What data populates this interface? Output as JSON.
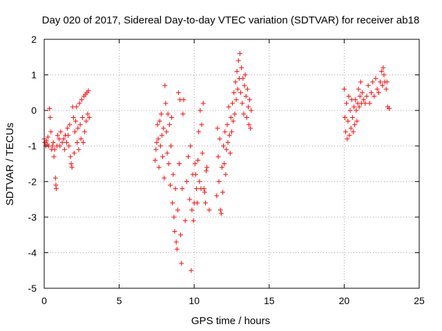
{
  "chart_data": {
    "type": "scatter",
    "title": "Day 020 of 2017, Sidereal Day-to-day VTEC variation (SDTVAR) for receiver ab18",
    "xlabel": "GPS time / hours",
    "ylabel": "SDTVAR / TECUs",
    "xlim": [
      0,
      25
    ],
    "ylim": [
      -5,
      2
    ],
    "xticks": [
      0,
      5,
      10,
      15,
      20,
      25
    ],
    "yticks": [
      -5,
      -4,
      -3,
      -2,
      -1,
      0,
      1,
      2
    ],
    "grid": true,
    "marker": "+",
    "color": "#ff0000",
    "series": [
      {
        "name": "SDTVAR",
        "points": [
          [
            0.0,
            -0.8
          ],
          [
            0.05,
            -0.9
          ],
          [
            0.1,
            -1.0
          ],
          [
            0.15,
            -0.85
          ],
          [
            0.2,
            -0.95
          ],
          [
            0.25,
            -0.75
          ],
          [
            0.3,
            -1.0
          ],
          [
            0.35,
            0.05
          ],
          [
            0.4,
            -0.2
          ],
          [
            0.45,
            -0.6
          ],
          [
            0.5,
            -1.1
          ],
          [
            0.55,
            -1.0
          ],
          [
            0.6,
            -0.9
          ],
          [
            0.65,
            -1.3
          ],
          [
            0.7,
            -1.1
          ],
          [
            0.75,
            -1.9
          ],
          [
            0.78,
            -2.1
          ],
          [
            0.8,
            -2.2
          ],
          [
            0.85,
            -1.0
          ],
          [
            0.9,
            -0.7
          ],
          [
            1.0,
            -0.8
          ],
          [
            1.05,
            -1.0
          ],
          [
            1.1,
            -0.6
          ],
          [
            1.2,
            -0.9
          ],
          [
            1.3,
            -0.8
          ],
          [
            1.35,
            -1.1
          ],
          [
            1.4,
            -0.7
          ],
          [
            1.5,
            -0.9
          ],
          [
            1.55,
            -0.5
          ],
          [
            1.6,
            -0.7
          ],
          [
            1.65,
            -1.0
          ],
          [
            1.7,
            -0.4
          ],
          [
            1.75,
            -1.3
          ],
          [
            1.8,
            -1.5
          ],
          [
            1.85,
            -1.6
          ],
          [
            1.9,
            0.1
          ],
          [
            1.95,
            -0.2
          ],
          [
            2.0,
            -1.2
          ],
          [
            2.05,
            -0.6
          ],
          [
            2.1,
            -0.3
          ],
          [
            2.15,
            0.1
          ],
          [
            2.2,
            -0.9
          ],
          [
            2.25,
            -0.5
          ],
          [
            2.3,
            -1.1
          ],
          [
            2.35,
            0.2
          ],
          [
            2.4,
            -0.4
          ],
          [
            2.45,
            -0.8
          ],
          [
            2.5,
            0.3
          ],
          [
            2.55,
            -0.2
          ],
          [
            2.6,
            -0.9
          ],
          [
            2.65,
            0.4
          ],
          [
            2.7,
            -0.6
          ],
          [
            2.75,
            0.45
          ],
          [
            2.8,
            -0.3
          ],
          [
            2.85,
            0.5
          ],
          [
            2.9,
            -0.1
          ],
          [
            2.95,
            0.55
          ],
          [
            3.0,
            -0.2
          ],
          [
            7.4,
            -1.4
          ],
          [
            7.45,
            -1.1
          ],
          [
            7.5,
            -0.9
          ],
          [
            7.55,
            -0.4
          ],
          [
            7.6,
            -0.8
          ],
          [
            7.65,
            -1.6
          ],
          [
            7.7,
            -0.3
          ],
          [
            7.75,
            -1.0
          ],
          [
            7.8,
            -0.1
          ],
          [
            7.85,
            -0.7
          ],
          [
            7.9,
            -1.3
          ],
          [
            7.95,
            -0.5
          ],
          [
            8.0,
            -1.9
          ],
          [
            8.05,
            0.7
          ],
          [
            8.1,
            0.2
          ],
          [
            8.15,
            -0.6
          ],
          [
            8.2,
            -1.2
          ],
          [
            8.25,
            -0.1
          ],
          [
            8.3,
            -1.5
          ],
          [
            8.35,
            -0.4
          ],
          [
            8.4,
            -2.1
          ],
          [
            8.45,
            -1.0
          ],
          [
            8.5,
            -0.2
          ],
          [
            8.55,
            -2.6
          ],
          [
            8.6,
            -1.8
          ],
          [
            8.65,
            -3.0
          ],
          [
            8.7,
            -3.4
          ],
          [
            8.75,
            -2.2
          ],
          [
            8.8,
            -3.7
          ],
          [
            8.85,
            -3.9
          ],
          [
            8.9,
            -2.8
          ],
          [
            8.95,
            0.5
          ],
          [
            9.0,
            -1.5
          ],
          [
            9.05,
            0.3
          ],
          [
            9.1,
            -3.5
          ],
          [
            9.15,
            -4.3
          ],
          [
            9.2,
            -2.2
          ],
          [
            9.25,
            -0.1
          ],
          [
            9.3,
            0.3
          ],
          [
            9.4,
            -3.1
          ],
          [
            9.5,
            -2.0
          ],
          [
            9.6,
            -1.3
          ],
          [
            9.7,
            -2.5
          ],
          [
            9.75,
            -1.0
          ],
          [
            9.8,
            -4.5
          ],
          [
            9.85,
            -2.8
          ],
          [
            9.9,
            -1.8
          ],
          [
            9.95,
            -3.1
          ],
          [
            10.0,
            -2.6
          ],
          [
            10.05,
            -1.5
          ],
          [
            10.1,
            -1.8
          ],
          [
            10.15,
            -2.2
          ],
          [
            10.2,
            -2.6
          ],
          [
            10.25,
            -1.4
          ],
          [
            10.3,
            -0.6
          ],
          [
            10.35,
            -2.0
          ],
          [
            10.4,
            0.0
          ],
          [
            10.45,
            -2.2
          ],
          [
            10.5,
            -0.4
          ],
          [
            10.55,
            -1.2
          ],
          [
            10.6,
            0.2
          ],
          [
            10.65,
            -2.2
          ],
          [
            10.7,
            -2.3
          ],
          [
            10.75,
            -2.6
          ],
          [
            10.8,
            -1.7
          ],
          [
            10.85,
            -1.6
          ],
          [
            11.0,
            -2.8
          ],
          [
            11.5,
            -2.4
          ],
          [
            11.55,
            -0.5
          ],
          [
            11.6,
            -1.3
          ],
          [
            11.65,
            -2.0
          ],
          [
            11.7,
            -0.8
          ],
          [
            11.75,
            -2.8
          ],
          [
            11.8,
            -2.9
          ],
          [
            11.85,
            -1.6
          ],
          [
            11.9,
            -2.3
          ],
          [
            11.95,
            -1.0
          ],
          [
            12.0,
            -1.5
          ],
          [
            12.05,
            -0.6
          ],
          [
            12.1,
            -1.8
          ],
          [
            12.15,
            -1.1
          ],
          [
            12.2,
            -0.4
          ],
          [
            12.25,
            -0.9
          ],
          [
            12.3,
            0.1
          ],
          [
            12.35,
            -0.7
          ],
          [
            12.4,
            -1.2
          ],
          [
            12.45,
            -0.2
          ],
          [
            12.5,
            -0.6
          ],
          [
            12.55,
            0.2
          ],
          [
            12.6,
            -0.3
          ],
          [
            12.65,
            0.5
          ],
          [
            12.7,
            -0.1
          ],
          [
            12.75,
            0.8
          ],
          [
            12.8,
            0.3
          ],
          [
            12.85,
            1.1
          ],
          [
            12.9,
            0.6
          ],
          [
            12.95,
            1.4
          ],
          [
            13.0,
            0.9
          ],
          [
            13.05,
            1.6
          ],
          [
            13.1,
            0.5
          ],
          [
            13.15,
            1.2
          ],
          [
            13.2,
            0.2
          ],
          [
            13.25,
            0.9
          ],
          [
            13.3,
            -0.1
          ],
          [
            13.35,
            0.7
          ],
          [
            13.4,
            1.0
          ],
          [
            13.45,
            0.4
          ],
          [
            13.5,
            -0.2
          ],
          [
            13.55,
            0.6
          ],
          [
            13.6,
            0.1
          ],
          [
            13.65,
            -0.4
          ],
          [
            13.7,
            0.3
          ],
          [
            13.75,
            -0.5
          ],
          [
            13.8,
            0.0
          ],
          [
            20.0,
            0.6
          ],
          [
            20.05,
            -0.2
          ],
          [
            20.1,
            -0.6
          ],
          [
            20.15,
            0.2
          ],
          [
            20.2,
            -0.8
          ],
          [
            20.25,
            -0.3
          ],
          [
            20.3,
            0.4
          ],
          [
            20.35,
            -0.7
          ],
          [
            20.4,
            0.0
          ],
          [
            20.45,
            -0.5
          ],
          [
            20.5,
            0.3
          ],
          [
            20.55,
            -0.2
          ],
          [
            20.6,
            -0.6
          ],
          [
            20.65,
            0.1
          ],
          [
            20.7,
            -0.4
          ],
          [
            20.75,
            0.3
          ],
          [
            20.8,
            0.0
          ],
          [
            20.85,
            -0.3
          ],
          [
            20.9,
            0.2
          ],
          [
            20.95,
            0.6
          ],
          [
            21.0,
            0.1
          ],
          [
            21.05,
            0.4
          ],
          [
            21.1,
            0.8
          ],
          [
            21.15,
            0.2
          ],
          [
            21.2,
            0.5
          ],
          [
            21.3,
            0.3
          ],
          [
            21.4,
            0.2
          ],
          [
            21.5,
            0.4
          ],
          [
            21.6,
            0.7
          ],
          [
            21.7,
            0.2
          ],
          [
            21.8,
            0.5
          ],
          [
            21.9,
            0.8
          ],
          [
            22.0,
            0.4
          ],
          [
            22.1,
            0.9
          ],
          [
            22.2,
            0.6
          ],
          [
            22.3,
            0.5
          ],
          [
            22.4,
            0.8
          ],
          [
            22.5,
            1.1
          ],
          [
            22.55,
            0.7
          ],
          [
            22.6,
            1.2
          ],
          [
            22.65,
            1.0
          ],
          [
            22.7,
            0.8
          ],
          [
            22.8,
            0.6
          ],
          [
            22.85,
            0.8
          ],
          [
            22.9,
            0.1
          ],
          [
            23.0,
            0.05
          ]
        ]
      }
    ]
  }
}
